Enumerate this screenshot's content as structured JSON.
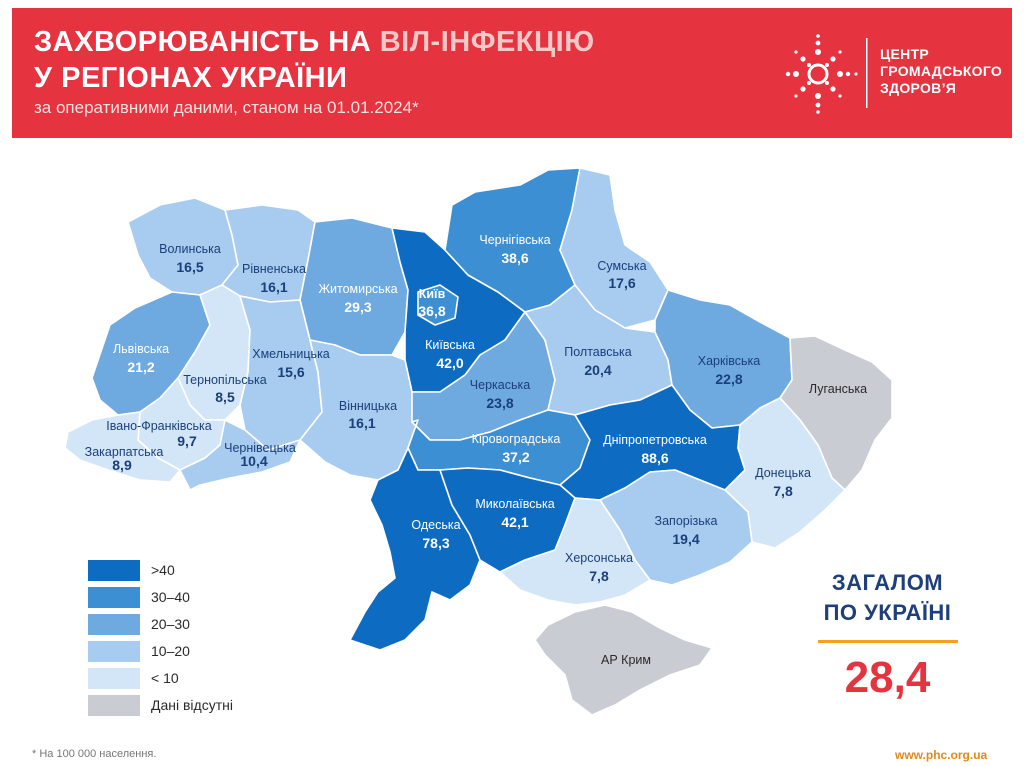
{
  "header": {
    "title_line1_a": "ЗАХВОРЮВАНІСТЬ НА ",
    "title_line1_b": "ВІЛ-ІНФЕКЦІЮ",
    "title_line2": "У РЕГІОНАХ УКРАЇНИ",
    "subtitle": "за оперативними даними, станом на 01.01.2024*",
    "logo_line1": "ЦЕНТР",
    "logo_line2": "ГРОМАДСЬКОГО",
    "logo_line3": "ЗДОРОВ’Я",
    "color": "#e5333f"
  },
  "regions": {
    "volyn": {
      "name": "Волинська",
      "value": "16,5"
    },
    "rivne": {
      "name": "Рівненська",
      "value": "16,1"
    },
    "zhytomyr": {
      "name": "Житомирська",
      "value": "29,3"
    },
    "kyiv_city": {
      "name": "Київ",
      "value": "36,8"
    },
    "chernihiv": {
      "name": "Чернігівська",
      "value": "38,6"
    },
    "sumy": {
      "name": "Сумська",
      "value": "17,6"
    },
    "lviv": {
      "name": "Львівська",
      "value": "21,2"
    },
    "ternopil": {
      "name": "Тернопільська",
      "value": "8,5"
    },
    "khmelnytskyi": {
      "name": "Хмельницька",
      "value": "15,6"
    },
    "kyiv_oblast": {
      "name": "Київська",
      "value": "42,0"
    },
    "poltava": {
      "name": "Полтавська",
      "value": "20,4"
    },
    "kharkiv": {
      "name": "Харківська",
      "value": "22,8"
    },
    "luhansk": {
      "name": "Луганська"
    },
    "ivano_frankivsk": {
      "name": "Івано-Франківська",
      "value": "9,7"
    },
    "zakarpattia": {
      "name": "Закарпатська",
      "value": "8,9"
    },
    "chernivtsi": {
      "name": "Чернівецька",
      "value": "10,4"
    },
    "vinnytsia": {
      "name": "Вінницька",
      "value": "16,1"
    },
    "cherkasy": {
      "name": "Черкаська",
      "value": "23,8"
    },
    "kirovohrad": {
      "name": "Кіровоградська",
      "value": "37,2"
    },
    "dnipro": {
      "name": "Дніпропетровська",
      "value": "88,6"
    },
    "donetsk": {
      "name": "Донецька",
      "value": "7,8"
    },
    "odesa": {
      "name": "Одеська",
      "value": "78,3"
    },
    "mykolaiv": {
      "name": "Миколаївська",
      "value": "42,1"
    },
    "zaporizhzhia": {
      "name": "Запорізька",
      "value": "19,4"
    },
    "kherson": {
      "name": "Херсонська",
      "value": "7,8"
    },
    "crimea": {
      "name": "АР Крим"
    }
  },
  "legend": [
    {
      "label": ">40",
      "color": "#0d6cc2"
    },
    {
      "label": "30–40",
      "color": "#3d8fd3"
    },
    {
      "label": "20–30",
      "color": "#6ea9df"
    },
    {
      "label": "10–20",
      "color": "#a7ccef"
    },
    {
      "label": "< 10",
      "color": "#d3e6f7"
    },
    {
      "label": "Дані відсутні",
      "color": "#c9ccd2"
    }
  ],
  "total": {
    "line1": "ЗАГАЛОМ",
    "line2": "ПО УКРАЇНІ",
    "value": "28,4"
  },
  "footer": {
    "footnote": "* На 100 000 населення.",
    "url": "www.phc.org.ua"
  }
}
